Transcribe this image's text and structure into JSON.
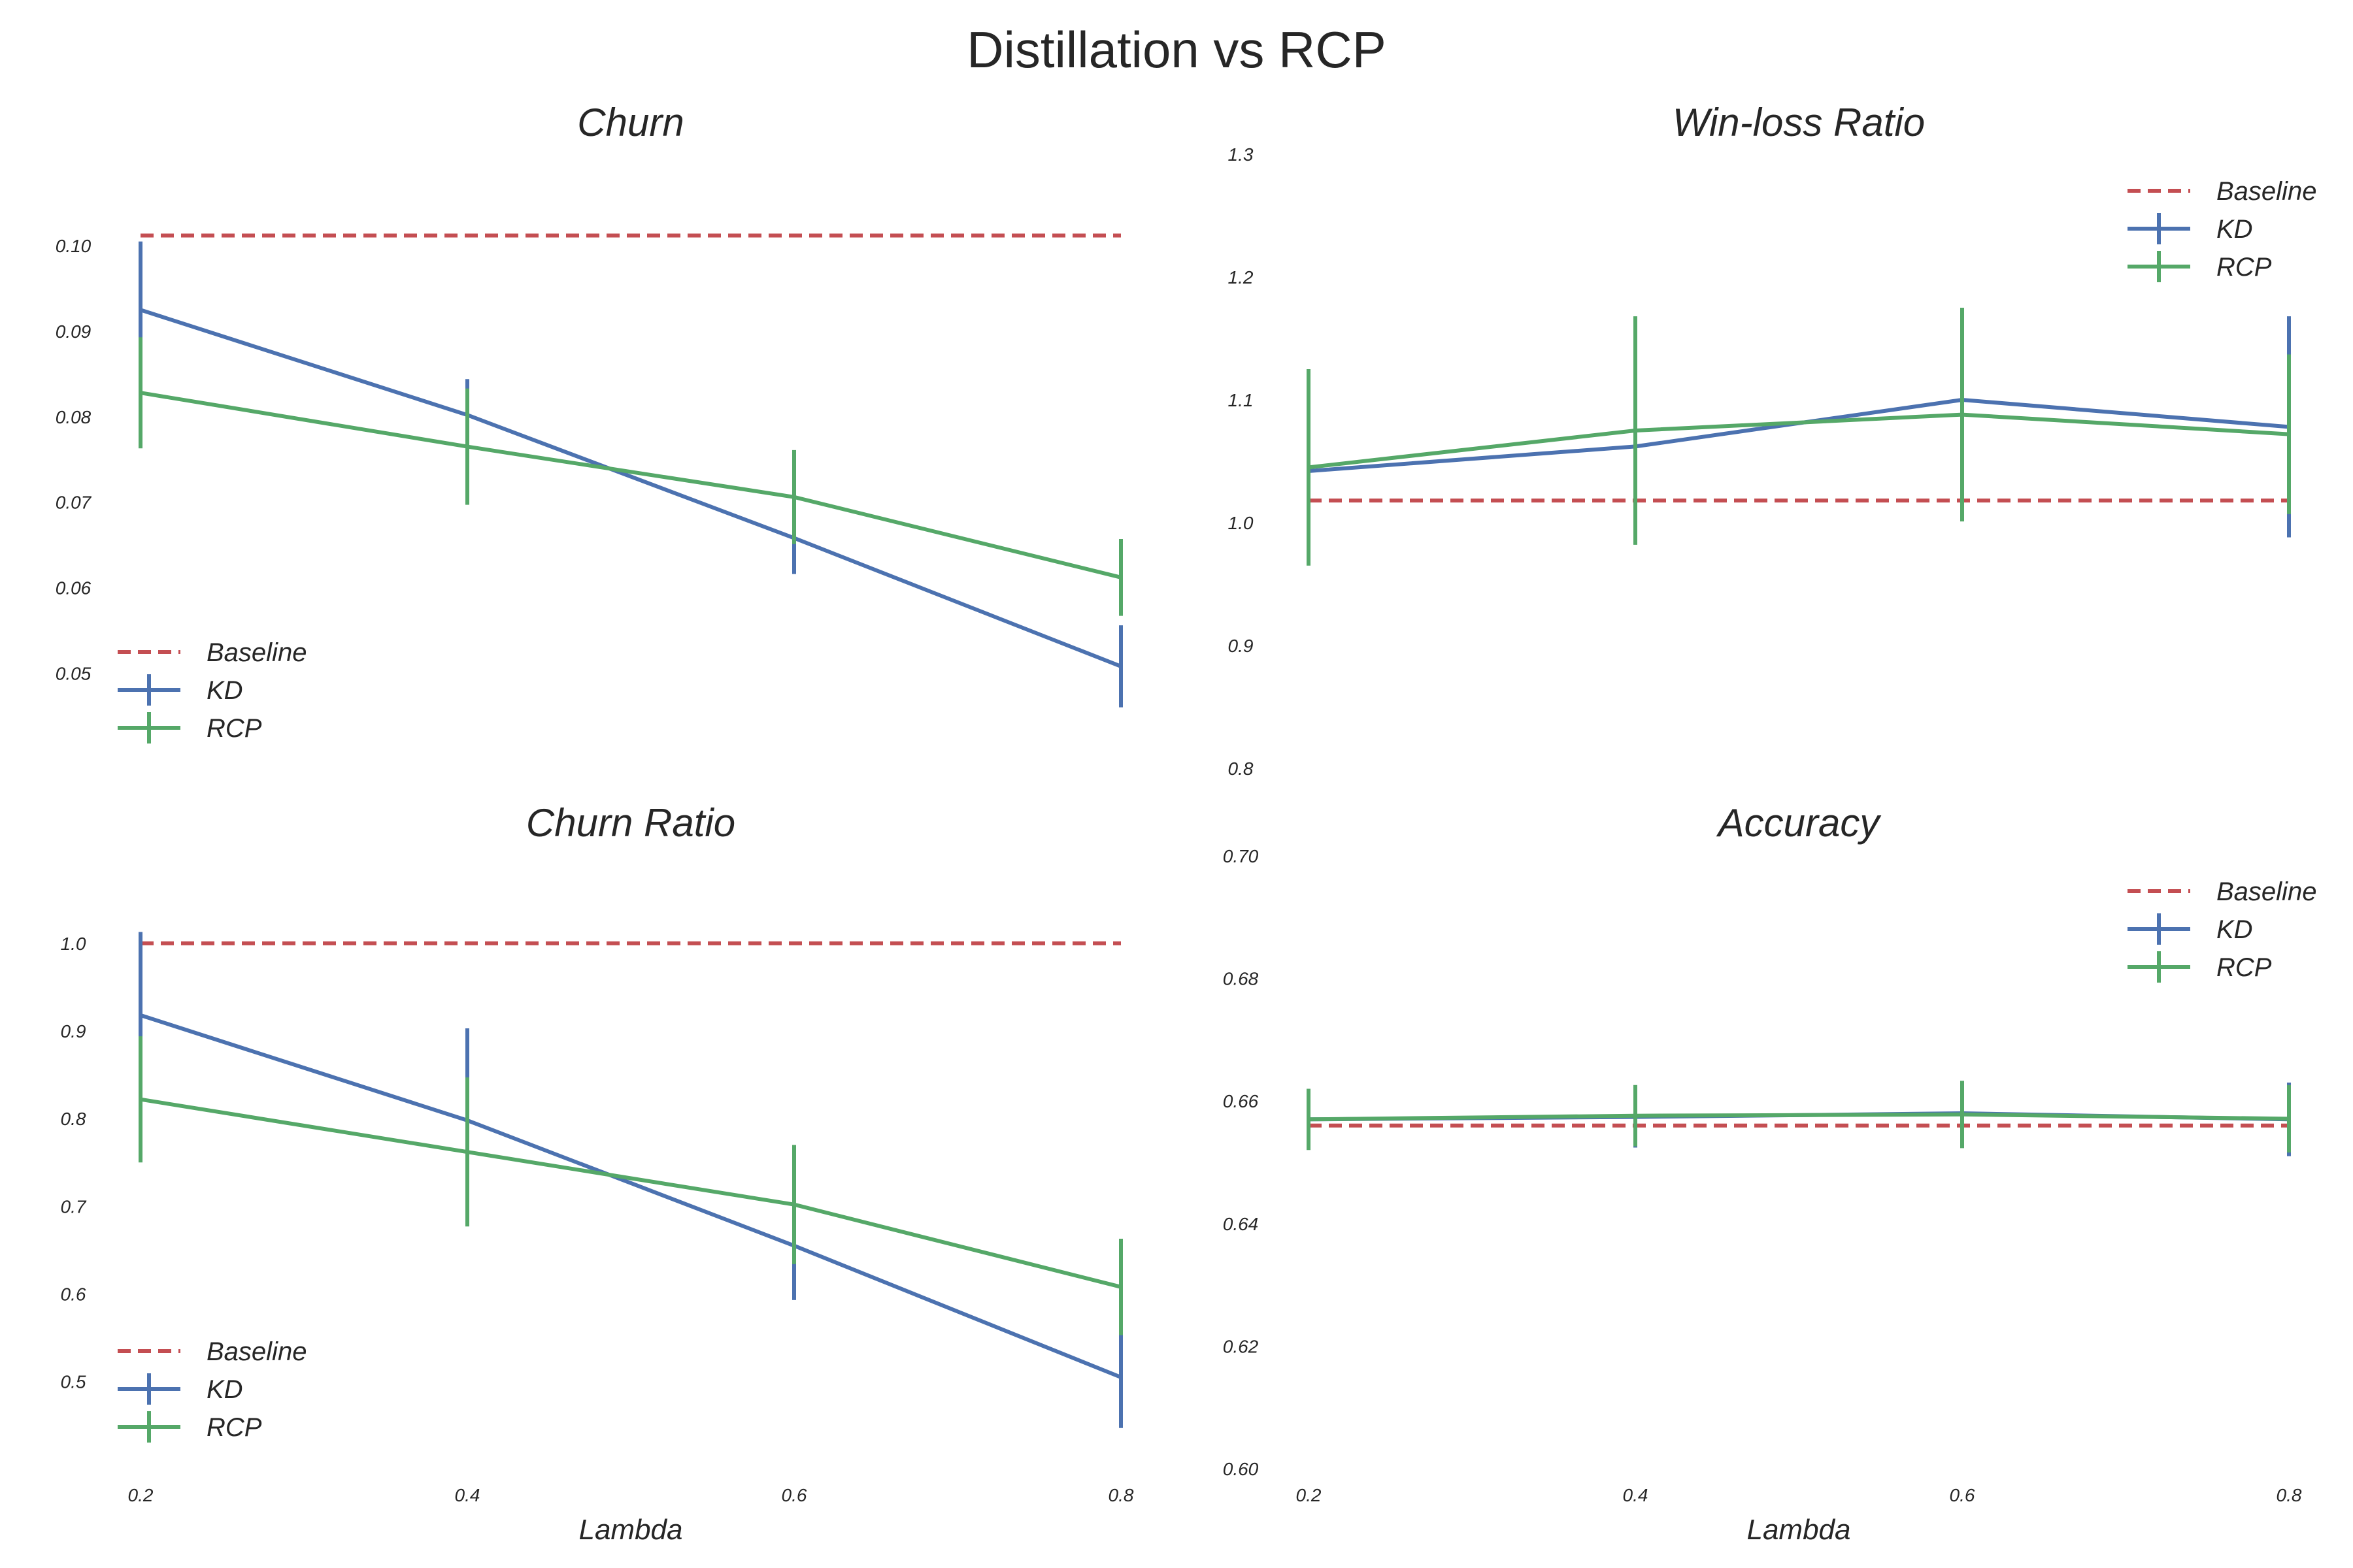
{
  "figure": {
    "title": "Distillation vs RCP"
  },
  "colors": {
    "baseline": "#C44E52",
    "kd": "#4C72B0",
    "rcp": "#55A868"
  },
  "chart_data": [
    {
      "type": "line",
      "title": "Churn",
      "xlabel": "",
      "x": [
        0.2,
        0.4,
        0.6,
        0.8
      ],
      "ylim": [
        0.042,
        0.1085
      ],
      "yticks": [
        "0.05",
        "0.06",
        "0.07",
        "0.08",
        "0.09",
        "0.10"
      ],
      "xticks": [],
      "legend": "lower-left",
      "grid": false,
      "baseline": {
        "name": "Baseline",
        "value": 0.1012
      },
      "series": [
        {
          "name": "KD",
          "values": [
            0.0925,
            0.0802,
            0.0658,
            0.0508
          ],
          "err": [
            0.008,
            0.0042,
            0.0042,
            0.0048
          ]
        },
        {
          "name": "RCP",
          "values": [
            0.0828,
            0.0765,
            0.0706,
            0.0612
          ],
          "err": [
            0.0065,
            0.0068,
            0.0055,
            0.0045
          ]
        }
      ]
    },
    {
      "type": "line",
      "title": "Win-loss Ratio",
      "xlabel": "",
      "x": [
        0.2,
        0.4,
        0.6,
        0.8
      ],
      "ylim": [
        0.8,
        1.3
      ],
      "yticks": [
        "0.8",
        "0.9",
        "1.0",
        "1.1",
        "1.2",
        "1.3"
      ],
      "xticks": [],
      "legend": "top-right",
      "grid": false,
      "baseline": {
        "name": "Baseline",
        "value": 1.018
      },
      "series": [
        {
          "name": "KD",
          "values": [
            1.042,
            1.062,
            1.1,
            1.078
          ],
          "err": [
            0.06,
            0.065,
            0.075,
            0.09
          ]
        },
        {
          "name": "RCP",
          "values": [
            1.045,
            1.075,
            1.088,
            1.072
          ],
          "err": [
            0.08,
            0.093,
            0.087,
            0.065
          ]
        }
      ]
    },
    {
      "type": "line",
      "title": "Churn Ratio",
      "xlabel": "Lambda",
      "x": [
        0.2,
        0.4,
        0.6,
        0.8
      ],
      "ylim": [
        0.42,
        1.07
      ],
      "yticks": [
        "0.5",
        "0.6",
        "0.7",
        "0.8",
        "0.9",
        "1.0"
      ],
      "xticks": [
        "0.2",
        "0.4",
        "0.6",
        "0.8"
      ],
      "legend": "lower-left",
      "grid": false,
      "baseline": {
        "name": "Baseline",
        "value": 1.0
      },
      "series": [
        {
          "name": "KD",
          "values": [
            0.918,
            0.798,
            0.655,
            0.505
          ],
          "err": [
            0.095,
            0.105,
            0.062,
            0.058
          ]
        },
        {
          "name": "RCP",
          "values": [
            0.822,
            0.762,
            0.702,
            0.608
          ],
          "err": [
            0.072,
            0.085,
            0.068,
            0.055
          ]
        }
      ]
    },
    {
      "type": "line",
      "title": "Accuracy",
      "xlabel": "Lambda",
      "x": [
        0.2,
        0.4,
        0.6,
        0.8
      ],
      "ylim": [
        0.6,
        0.7
      ],
      "yticks": [
        "0.60",
        "0.62",
        "0.64",
        "0.66",
        "0.68",
        "0.70"
      ],
      "xticks": [
        "0.2",
        "0.4",
        "0.6",
        "0.8"
      ],
      "legend": "top-right",
      "grid": false,
      "baseline": {
        "name": "Baseline",
        "value": 0.656
      },
      "series": [
        {
          "name": "KD",
          "values": [
            0.657,
            0.6574,
            0.658,
            0.657
          ],
          "err": [
            0.004,
            0.005,
            0.005,
            0.006
          ]
        },
        {
          "name": "RCP",
          "values": [
            0.657,
            0.6576,
            0.6578,
            0.6571
          ],
          "err": [
            0.005,
            0.005,
            0.0055,
            0.0055
          ]
        }
      ]
    }
  ]
}
